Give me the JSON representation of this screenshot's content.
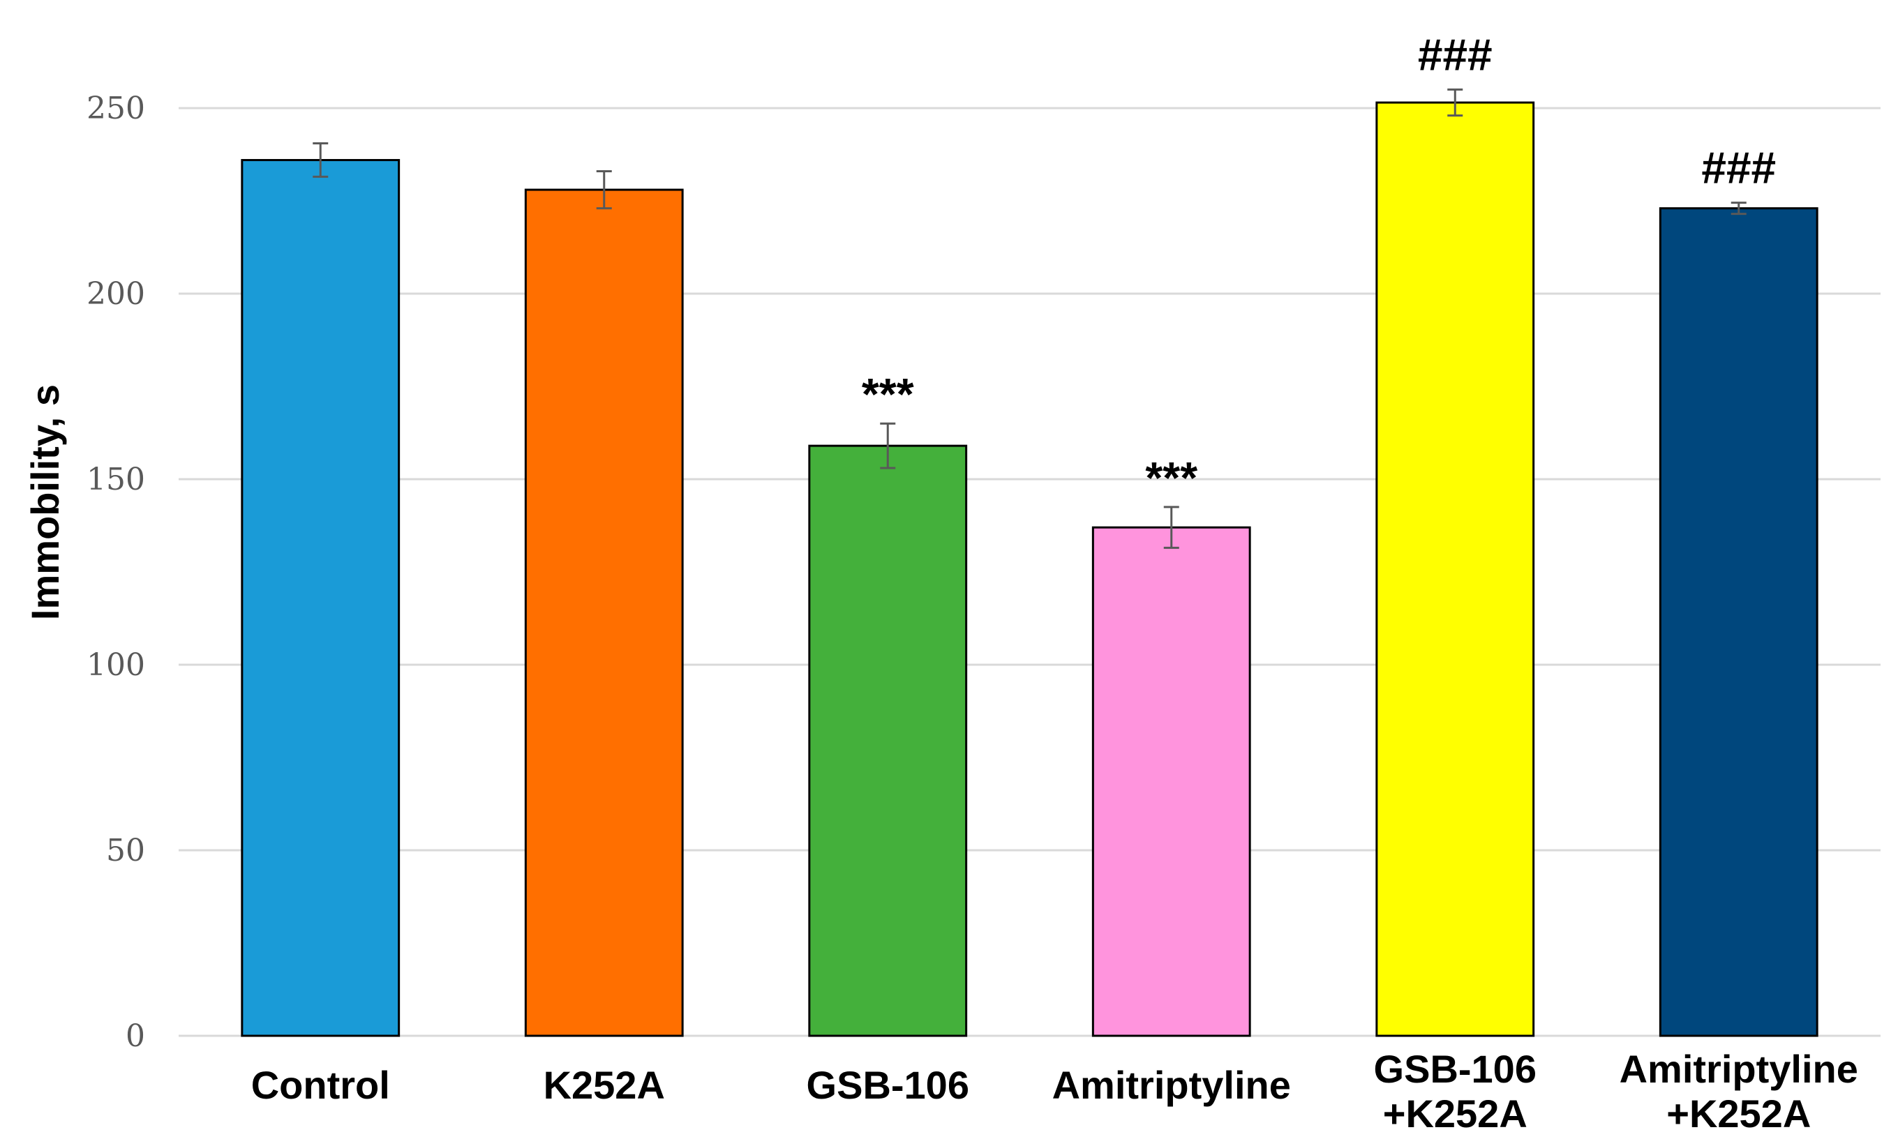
{
  "chart_data": {
    "type": "bar",
    "title": "",
    "xlabel": "",
    "ylabel": "Immobility, s",
    "ylim": [
      0,
      250
    ],
    "yticks": [
      0,
      50,
      100,
      150,
      200,
      250
    ],
    "grid": true,
    "categories": [
      {
        "lines": [
          "Control"
        ],
        "value": 236,
        "error": 4.5,
        "color": "#1a9bd7",
        "annotation": ""
      },
      {
        "lines": [
          "K252A"
        ],
        "value": 228,
        "error": 5,
        "color": "#ff6f00",
        "annotation": ""
      },
      {
        "lines": [
          "GSB-106"
        ],
        "value": 159,
        "error": 6,
        "color": "#44b03b",
        "annotation": "***"
      },
      {
        "lines": [
          "Amitriptyline"
        ],
        "value": 137,
        "error": 5.5,
        "color": "#ff94dd",
        "annotation": "***"
      },
      {
        "lines": [
          "GSB-106",
          "+K252A"
        ],
        "value": 251.5,
        "error": 3.5,
        "color": "#ffff00",
        "annotation": "###"
      },
      {
        "lines": [
          "Amitriptyline",
          "+K252A"
        ],
        "value": 223,
        "error": 1.5,
        "color": "#00477d",
        "annotation": "###"
      }
    ]
  }
}
